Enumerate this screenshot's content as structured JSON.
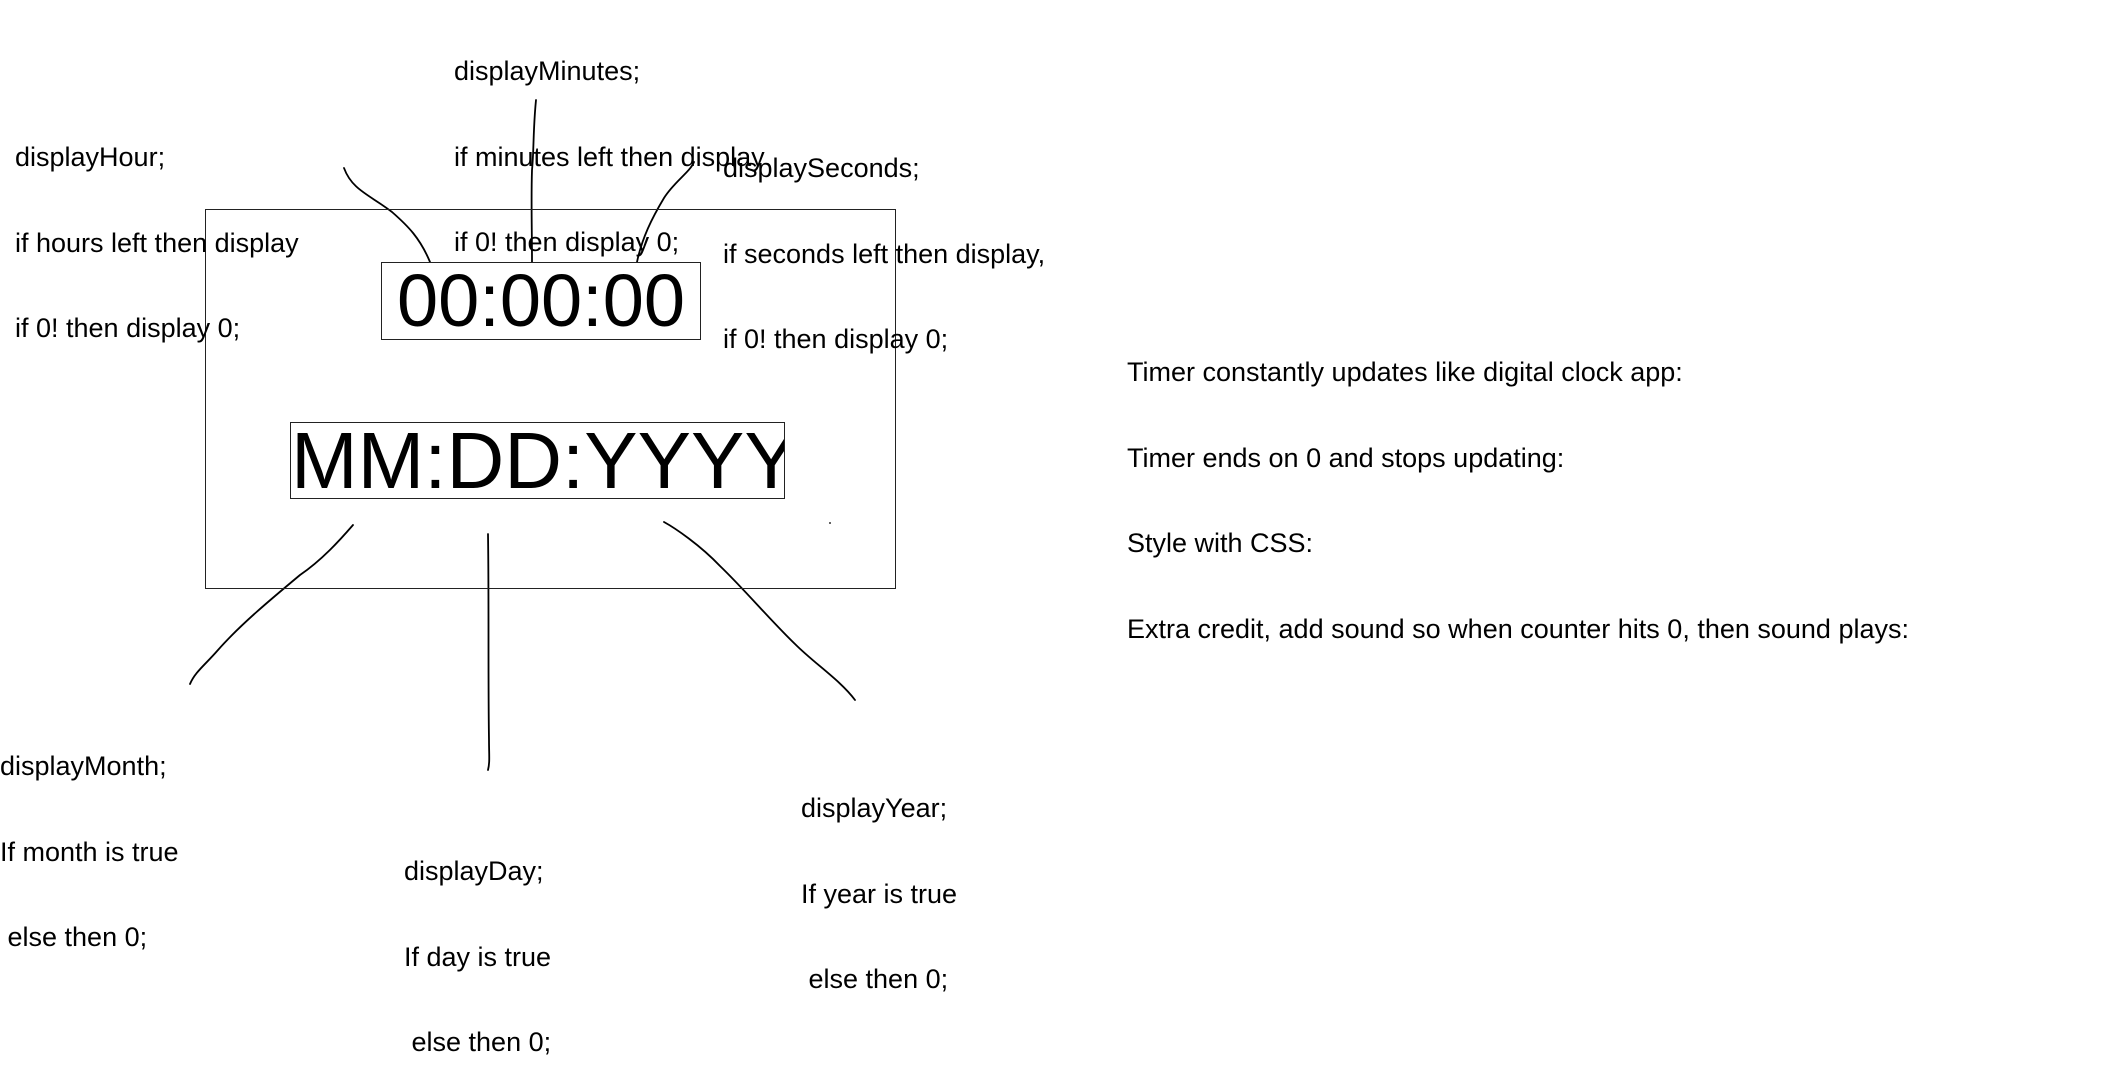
{
  "clock": {
    "time_display": "00:00:00",
    "date_display": "MM:DD:YYYY"
  },
  "annotations": {
    "hour": [
      "displayHour;",
      "if hours left then display",
      "if 0! then display 0;"
    ],
    "minutes": [
      "displayMinutes;",
      "if minutes left then display",
      "if 0! then display 0;"
    ],
    "seconds": [
      "displaySeconds;",
      "if seconds left then display,",
      "if 0! then display 0;"
    ],
    "month": [
      "displayMonth;",
      "If month is true",
      " else then 0;"
    ],
    "day": [
      "displayDay;",
      "If day is true",
      " else then 0;"
    ],
    "year": [
      "displayYear;",
      "If year is true",
      " else then 0;"
    ]
  },
  "requirements": [
    "Timer constantly updates like digital clock app:",
    "Timer ends on 0 and stops updating:",
    "Style with CSS:",
    "Extra credit, add sound so when counter hits 0, then sound plays:"
  ]
}
